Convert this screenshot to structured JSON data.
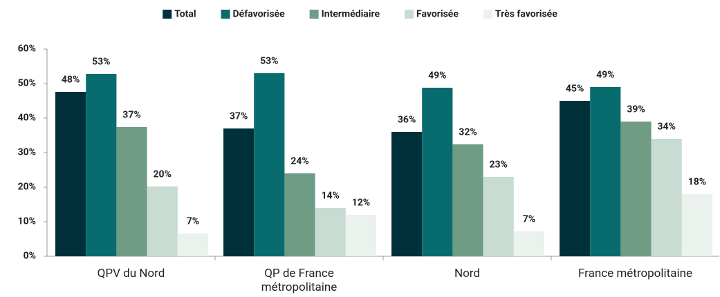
{
  "chart_data": {
    "type": "bar",
    "categories": [
      "QPV du Nord",
      "QP de France métropolitaine",
      "Nord",
      "France métropolitaine"
    ],
    "series": [
      {
        "name": "Total",
        "color": "#00313b",
        "values": [
          47.6,
          37,
          36,
          45
        ],
        "value_labels": [
          "48%",
          "37%",
          "36%",
          "45%"
        ]
      },
      {
        "name": "Défavorisée",
        "color": "#086c6f",
        "values": [
          52.8,
          53,
          48.8,
          49
        ],
        "value_labels": [
          "53%",
          "53%",
          "49%",
          "49%"
        ]
      },
      {
        "name": "Intermédiaire",
        "color": "#6f9c85",
        "values": [
          37.4,
          24,
          32.4,
          39
        ],
        "value_labels": [
          "37%",
          "24%",
          "32%",
          "39%"
        ]
      },
      {
        "name": "Favorisée",
        "color": "#c8dcd3",
        "values": [
          20.2,
          14,
          23,
          34
        ],
        "value_labels": [
          "20%",
          "14%",
          "23%",
          "34%"
        ]
      },
      {
        "name": "Très favorisée",
        "color": "#ebf1ed",
        "values": [
          6.6,
          12,
          7.2,
          18
        ],
        "value_labels": [
          "7%",
          "12%",
          "7%",
          "18%"
        ]
      }
    ],
    "ylim": [
      0,
      60
    ],
    "yticks": [
      {
        "value": 0,
        "label": "0%"
      },
      {
        "value": 10,
        "label": "10%"
      },
      {
        "value": 20,
        "label": "20%"
      },
      {
        "value": 30,
        "label": "30%"
      },
      {
        "value": 40,
        "label": "40%"
      },
      {
        "value": 50,
        "label": "50%"
      },
      {
        "value": 60,
        "label": "60%"
      }
    ],
    "legend": "top"
  }
}
